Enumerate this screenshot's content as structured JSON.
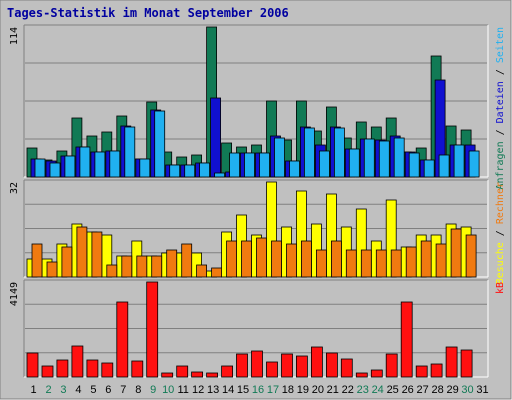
{
  "title": "Tages-Statistik im Monat September 2006",
  "colors": {
    "frame_bg": "#c0c0c0",
    "plot_bg": "#c0c0c0",
    "gridline": "#808080",
    "title": "#0000a0",
    "anfragen": "#117a55",
    "dateien": "#1010d0",
    "seiten": "#20b0f0",
    "besuche": "#ffff00",
    "rechner": "#f07a10",
    "kb": "#ff1010",
    "weekend_day": "#117a55",
    "weekday": "#000000"
  },
  "chart_data": [
    {
      "type": "bar",
      "panel": "top",
      "ymax_label": "114",
      "ylim": [
        0,
        114
      ],
      "legend": [
        "Anfragen",
        "Dateien",
        "Seiten"
      ],
      "categories": [
        "1",
        "2",
        "3",
        "4",
        "5",
        "6",
        "7",
        "8",
        "9",
        "10",
        "11",
        "12",
        "13",
        "14",
        "15",
        "16",
        "17",
        "18",
        "19",
        "20",
        "21",
        "22",
        "23",
        "24",
        "25",
        "26",
        "27",
        "28",
        "29",
        "30",
        "31"
      ],
      "series": [
        {
          "name": "Anfragen",
          "values": [
            22,
            13,
            20,
            45,
            31,
            34,
            46,
            14,
            57,
            19,
            15,
            17,
            114,
            26,
            23,
            24,
            58,
            28,
            58,
            35,
            53,
            30,
            42,
            38,
            45,
            19,
            22,
            92,
            39,
            36,
            0
          ]
        },
        {
          "name": "Dateien",
          "values": [
            14,
            12,
            16,
            23,
            19,
            20,
            39,
            14,
            51,
            9,
            9,
            11,
            60,
            4,
            18,
            18,
            31,
            12,
            38,
            24,
            38,
            21,
            29,
            28,
            31,
            19,
            13,
            74,
            24,
            24,
            0
          ]
        },
        {
          "name": "Seiten",
          "values": [
            14,
            11,
            16,
            23,
            19,
            20,
            38,
            14,
            50,
            9,
            9,
            11,
            3,
            18,
            18,
            18,
            30,
            12,
            37,
            20,
            37,
            21,
            29,
            27,
            30,
            18,
            13,
            17,
            24,
            20,
            0
          ]
        }
      ]
    },
    {
      "type": "bar",
      "panel": "middle",
      "ymax_label": "32",
      "ylim": [
        0,
        32
      ],
      "legend": [
        "Besuche",
        "Rechner"
      ],
      "categories": [
        "1",
        "2",
        "3",
        "4",
        "5",
        "6",
        "7",
        "8",
        "9",
        "10",
        "11",
        "12",
        "13",
        "14",
        "15",
        "16",
        "17",
        "18",
        "19",
        "20",
        "21",
        "22",
        "23",
        "24",
        "25",
        "26",
        "27",
        "28",
        "29",
        "30",
        "31"
      ],
      "series": [
        {
          "name": "Besuche",
          "values": [
            6,
            6,
            11,
            18,
            15,
            14,
            7,
            12,
            7,
            8,
            8,
            8,
            2,
            15,
            21,
            14,
            32,
            17,
            29,
            18,
            28,
            17,
            23,
            12,
            26,
            10,
            14,
            14,
            18,
            17,
            0
          ]
        },
        {
          "name": "Rechner",
          "values": [
            11,
            5,
            10,
            17,
            15,
            4,
            7,
            7,
            7,
            9,
            11,
            4,
            3,
            12,
            12,
            13,
            12,
            11,
            12,
            9,
            12,
            9,
            9,
            9,
            9,
            10,
            12,
            11,
            16,
            14,
            0
          ]
        }
      ]
    },
    {
      "type": "bar",
      "panel": "bottom",
      "ymax_label": "4149",
      "ylim": [
        0,
        4149
      ],
      "legend": [
        "kB"
      ],
      "categories": [
        "1",
        "2",
        "3",
        "4",
        "5",
        "6",
        "7",
        "8",
        "9",
        "10",
        "11",
        "12",
        "13",
        "14",
        "15",
        "16",
        "17",
        "18",
        "19",
        "20",
        "21",
        "22",
        "23",
        "24",
        "25",
        "26",
        "27",
        "28",
        "29",
        "30",
        "31"
      ],
      "series": [
        {
          "name": "kB",
          "values": [
            1050,
            480,
            730,
            1360,
            750,
            590,
            3290,
            690,
            4149,
            180,
            490,
            230,
            190,
            490,
            1000,
            1150,
            670,
            1010,
            900,
            1300,
            1050,
            790,
            180,
            320,
            1010,
            3290,
            500,
            560,
            1300,
            1180,
            0
          ]
        }
      ]
    }
  ],
  "day_labels": [
    "1",
    "2",
    "3",
    "4",
    "5",
    "6",
    "7",
    "8",
    "9",
    "10",
    "11",
    "12",
    "13",
    "14",
    "15",
    "16",
    "17",
    "18",
    "19",
    "20",
    "21",
    "22",
    "23",
    "24",
    "25",
    "26",
    "27",
    "28",
    "29",
    "30",
    "31"
  ],
  "weekend_days": [
    2,
    3,
    9,
    10,
    16,
    17,
    23,
    24,
    30
  ],
  "legend_top": [
    {
      "text": "Anfragen",
      "color_key": "anfragen"
    },
    {
      "text": "Dateien",
      "color_key": "dateien"
    },
    {
      "text": "Seiten",
      "color_key": "seiten"
    }
  ],
  "legend_middle": [
    {
      "text": "Besuche",
      "color_key": "besuche"
    },
    {
      "text": "Rechner",
      "color_key": "rechner"
    }
  ],
  "legend_bottom": [
    {
      "text": "kB",
      "color_key": "kb"
    }
  ],
  "legend_separator": " / "
}
